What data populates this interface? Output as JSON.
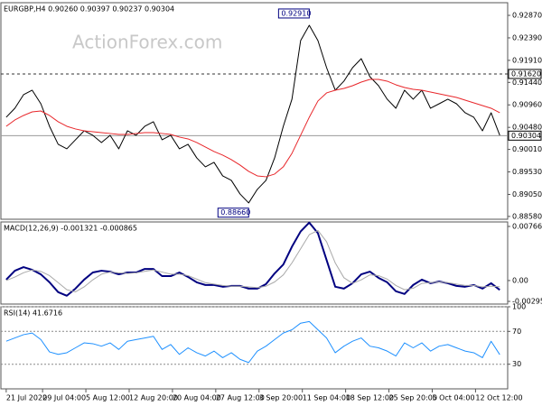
{
  "chart_data": [
    {
      "type": "line",
      "title": "EURGBP,H4  0.90260 0.90397 0.90237 0.90304",
      "watermark": "ActionForex.com",
      "xlim": [
        -0.3,
        57.6
      ],
      "ylim": [
        0.8852,
        0.9314
      ],
      "yticks": [
        {
          "value": 0.9287,
          "label": "0.92870"
        },
        {
          "value": 0.9239,
          "label": "0.92390"
        },
        {
          "value": 0.9191,
          "label": "0.91910"
        },
        {
          "value": 0.9144,
          "label": "0.91440"
        },
        {
          "value": 0.9096,
          "label": "0.90960"
        },
        {
          "value": 0.9048,
          "label": "0.90480"
        },
        {
          "value": 0.9001,
          "label": "0.90010"
        },
        {
          "value": 0.8953,
          "label": "0.89530"
        },
        {
          "value": 0.8905,
          "label": "0.89050"
        },
        {
          "value": 0.8858,
          "label": "0.88580"
        }
      ],
      "hlines": [
        {
          "value": 0.9162,
          "label": "0.91620",
          "style": "dashed"
        },
        {
          "value": 0.90304,
          "label": "0.90304",
          "style": "solid"
        }
      ],
      "annotations": [
        {
          "x": 35,
          "value": 0.9291,
          "label": "0.92910"
        },
        {
          "x": 28,
          "value": 0.8866,
          "label": "0.88660"
        }
      ],
      "series": [
        {
          "color": "#000000",
          "values": [
            0.90696,
            0.90888,
            0.91177,
            0.91273,
            0.90984,
            0.90503,
            0.90119,
            0.90023,
            0.90215,
            0.90407,
            0.90311,
            0.90157,
            0.90311,
            0.90023,
            0.90407,
            0.90311,
            0.90503,
            0.906,
            0.90215,
            0.90311,
            0.90023,
            0.90119,
            0.8983,
            0.89638,
            0.89734,
            0.89445,
            0.89349,
            0.8906,
            0.88868,
            0.89157,
            0.89349,
            0.8983,
            0.90503,
            0.91081,
            0.92331,
            0.92658,
            0.92331,
            0.91754,
            0.91273,
            0.91466,
            0.91754,
            0.91946,
            0.91562,
            0.91369,
            0.91081,
            0.90888,
            0.91273,
            0.91081,
            0.91273,
            0.90888,
            0.90984,
            0.91081,
            0.90984,
            0.90792,
            0.90696,
            0.90407,
            0.90792,
            0.90311
          ]
        },
        {
          "color": "#e8262a",
          "values": [
            0.90503,
            0.90638,
            0.90734,
            0.90811,
            0.9083,
            0.90734,
            0.906,
            0.90503,
            0.90446,
            0.90407,
            0.90388,
            0.90369,
            0.9035,
            0.9033,
            0.9033,
            0.9035,
            0.90369,
            0.90369,
            0.9035,
            0.9033,
            0.90273,
            0.90234,
            0.90157,
            0.90061,
            0.89965,
            0.89888,
            0.89792,
            0.89676,
            0.89541,
            0.89445,
            0.89426,
            0.89484,
            0.89638,
            0.89926,
            0.90311,
            0.90696,
            0.91043,
            0.91216,
            0.91273,
            0.91311,
            0.91369,
            0.91446,
            0.91504,
            0.91504,
            0.91466,
            0.91389,
            0.91331,
            0.91292,
            0.91273,
            0.91235,
            0.91196,
            0.91158,
            0.91119,
            0.91061,
            0.91004,
            0.90946,
            0.90888,
            0.90792
          ]
        }
      ]
    },
    {
      "type": "macd",
      "title": "MACD(12,26,9) -0.001321 -0.000865",
      "xlim": [
        -0.3,
        57.6
      ],
      "ylim": [
        -0.00333,
        0.0083
      ],
      "yticks": [
        0.007663,
        {
          "value": 0,
          "label": "0.00"
        },
        -0.002952
      ],
      "series": [
        {
          "color": "#000080",
          "values": [
            0.00013,
            0.00139,
            0.0019,
            0.00152,
            0.00088,
            -0.00025,
            -0.00164,
            -0.00215,
            -0.00114,
            0.00013,
            0.00114,
            0.00139,
            0.00126,
            0.00088,
            0.00114,
            0.00114,
            0.00164,
            0.00164,
            0.00063,
            0.00063,
            0.00114,
            0.00051,
            -0.00025,
            -0.00063,
            -0.00063,
            -0.00088,
            -0.00076,
            -0.00076,
            -0.00114,
            -0.00114,
            -0.00051,
            0.00101,
            0.00227,
            0.0048,
            0.00695,
            0.00821,
            0.0067,
            0.00291,
            -0.00088,
            -0.00114,
            -0.00038,
            0.00088,
            0.00126,
            0.00038,
            -0.00025,
            -0.00152,
            -0.0019,
            -0.00063,
            0.00013,
            -0.00038,
            -0.00013,
            -0.00038,
            -0.00076,
            -0.00088,
            -0.00063,
            -0.00114,
            -0.00038,
            -0.001321
          ]
        },
        {
          "color": "#a9a9a9",
          "values": [
            0,
            0.0005,
            0.0011,
            0.0015,
            0.0013,
            0.0007,
            -0.0003,
            -0.0013,
            -0.0016,
            -0.0009,
            0.0001,
            0.0009,
            0.0012,
            0.0011,
            0.001,
            0.0011,
            0.0013,
            0.0015,
            0.0012,
            0.0009,
            0.0009,
            0.0007,
            0.0002,
            -0.0003,
            -0.0005,
            -0.0007,
            -0.0008,
            -0.0008,
            -0.0009,
            -0.001,
            -0.0008,
            -0.0002,
            0.0008,
            0.0025,
            0.0045,
            0.0065,
            0.0071,
            0.0055,
            0.0025,
            0.0004,
            -0.0004,
            0.0001,
            0.0008,
            0.0007,
            0.0002,
            -0.0007,
            -0.0013,
            -0.0011,
            -0.0004,
            -0.0003,
            -0.0002,
            -0.0003,
            -0.0005,
            -0.0007,
            -0.0007,
            -0.0009,
            -0.0008,
            -0.000865
          ]
        }
      ]
    },
    {
      "type": "line",
      "title": "RSI(14) 41.6716",
      "xlim": [
        -0.3,
        57.6
      ],
      "ylim": [
        0,
        100
      ],
      "yticks": [
        100,
        70,
        30
      ],
      "grid": true,
      "series": [
        {
          "color": "#1e90ff",
          "values": [
            58,
            62,
            66,
            68,
            60,
            45,
            42,
            44,
            50,
            56,
            55,
            52,
            56,
            48,
            58,
            60,
            62,
            64,
            48,
            54,
            42,
            50,
            44,
            40,
            46,
            38,
            44,
            36,
            32,
            46,
            52,
            60,
            68,
            72,
            80,
            82,
            72,
            62,
            44,
            52,
            58,
            62,
            52,
            50,
            46,
            40,
            56,
            50,
            56,
            46,
            52,
            54,
            50,
            46,
            44,
            38,
            58,
            41.6716
          ]
        }
      ],
      "xticks": [
        {
          "value": 0,
          "label": "21 Jul 2020"
        },
        {
          "value": 4.2,
          "label": "29 Jul 04:00"
        },
        {
          "value": 9.2,
          "label": "5 Aug 12:00"
        },
        {
          "value": 14.2,
          "label": "12 Aug 20:00"
        },
        {
          "value": 19.2,
          "label": "20 Aug 04:00"
        },
        {
          "value": 24.2,
          "label": "27 Aug 12:00"
        },
        {
          "value": 29.2,
          "label": "3 Sep 20:00"
        },
        {
          "value": 34.2,
          "label": "11 Sep 04:00"
        },
        {
          "value": 39.2,
          "label": "18 Sep 12:00"
        },
        {
          "value": 44.2,
          "label": "25 Sep 20:00"
        },
        {
          "value": 49.2,
          "label": "5 Oct 04:00"
        },
        {
          "value": 54.2,
          "label": "12 Oct 12:00"
        }
      ]
    }
  ]
}
